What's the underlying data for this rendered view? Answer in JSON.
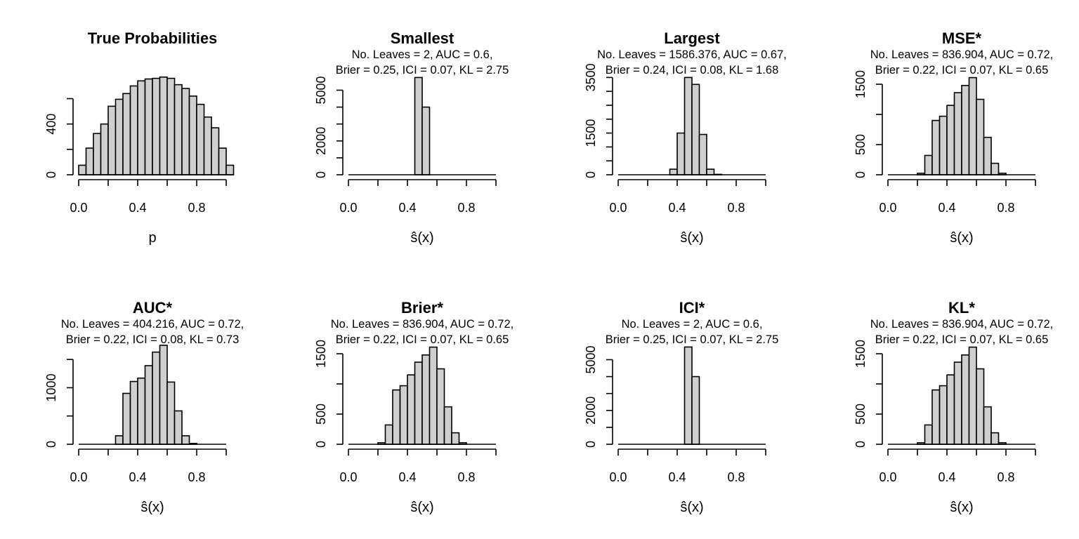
{
  "chart_data": [
    {
      "type": "bar",
      "title": "True Probabilities",
      "subtitle_1": "",
      "subtitle_2": "",
      "xlabel": "p",
      "xlim": [
        0,
        1
      ],
      "bin_width": 0.05,
      "x_ticks": [
        "0.0",
        "0.4",
        "0.8"
      ],
      "y_ticks": [
        "0",
        "400"
      ],
      "y_tick_values": [
        0,
        400
      ],
      "y_tick_positions": [
        0,
        200,
        400,
        600
      ],
      "ylim": [
        0,
        780
      ],
      "values": [
        75,
        210,
        325,
        400,
        540,
        595,
        640,
        700,
        740,
        755,
        760,
        770,
        760,
        710,
        680,
        620,
        555,
        455,
        370,
        210,
        75
      ]
    },
    {
      "type": "bar",
      "title": "Smallest",
      "subtitle_1": "No. Leaves = 2, AUC = 0.6,",
      "subtitle_2": "Brier = 0.25, ICI = 0.07, KL = 2.75",
      "xlabel": "ŝ(x)",
      "xlim": [
        0,
        1
      ],
      "bin_width": 0.05,
      "x_ticks": [
        "0.0",
        "0.4",
        "0.8"
      ],
      "y_ticks": [
        "0",
        "2000",
        "5000"
      ],
      "y_tick_values": [
        0,
        2000,
        5000
      ],
      "y_tick_positions": [
        0,
        1000,
        2000,
        3000,
        4000,
        5000,
        6000
      ],
      "ylim": [
        0,
        5850
      ],
      "values": [
        0,
        0,
        0,
        0,
        0,
        0,
        0,
        0,
        0,
        5750,
        4000,
        0,
        0,
        0,
        0,
        0,
        0,
        0,
        0,
        0
      ]
    },
    {
      "type": "bar",
      "title": "Largest",
      "subtitle_1": "No. Leaves = 1586.376, AUC = 0.67,",
      "subtitle_2": "Brier = 0.24, ICI = 0.08, KL = 1.68",
      "xlabel": "ŝ(x)",
      "xlim": [
        0,
        1
      ],
      "bin_width": 0.05,
      "x_ticks": [
        "0.0",
        "0.4",
        "0.8"
      ],
      "y_ticks": [
        "0",
        "1500",
        "3500"
      ],
      "y_tick_values": [
        0,
        1500,
        3500
      ],
      "y_tick_positions": [
        0,
        500,
        1000,
        1500,
        2000,
        2500,
        3000,
        3500
      ],
      "ylim": [
        0,
        3560
      ],
      "values": [
        0,
        0,
        0,
        0,
        0,
        0,
        0,
        200,
        1500,
        3500,
        3250,
        1450,
        200,
        15,
        0,
        0,
        0,
        0,
        0,
        0
      ]
    },
    {
      "type": "bar",
      "title": "MSE*",
      "subtitle_1": "No. Leaves = 836.904, AUC = 0.72,",
      "subtitle_2": "Brier = 0.22, ICI = 0.07, KL = 0.65",
      "xlabel": "ŝ(x)",
      "xlim": [
        0,
        1
      ],
      "bin_width": 0.05,
      "x_ticks": [
        "0.0",
        "0.4",
        "0.8"
      ],
      "y_ticks": [
        "0",
        "500",
        "1500"
      ],
      "y_tick_values": [
        0,
        500,
        1500
      ],
      "y_tick_positions": [
        0,
        500,
        1000,
        1500
      ],
      "ylim": [
        0,
        1640
      ],
      "values": [
        0,
        0,
        0,
        0,
        25,
        320,
        900,
        970,
        1150,
        1360,
        1480,
        1610,
        1250,
        620,
        190,
        25,
        0,
        0,
        0,
        0
      ]
    },
    {
      "type": "bar",
      "title": "AUC*",
      "subtitle_1": "No. Leaves = 404.216, AUC = 0.72,",
      "subtitle_2": "Brier = 0.22, ICI = 0.08, KL = 0.73",
      "xlabel": "ŝ(x)",
      "xlim": [
        0,
        1
      ],
      "bin_width": 0.05,
      "x_ticks": [
        "0.0",
        "0.4",
        "0.8"
      ],
      "y_ticks": [
        "0",
        "1000"
      ],
      "y_tick_values": [
        0,
        1000
      ],
      "y_tick_positions": [
        0,
        500,
        1000,
        1500
      ],
      "ylim": [
        0,
        1750
      ],
      "values": [
        0,
        0,
        0,
        0,
        0,
        150,
        900,
        1110,
        1170,
        1390,
        1630,
        1750,
        1100,
        590,
        150,
        15,
        0,
        0,
        0,
        0
      ]
    },
    {
      "type": "bar",
      "title": "Brier*",
      "subtitle_1": "No. Leaves = 836.904, AUC = 0.72,",
      "subtitle_2": "Brier = 0.22, ICI = 0.07, KL = 0.65",
      "xlabel": "ŝ(x)",
      "xlim": [
        0,
        1
      ],
      "bin_width": 0.05,
      "x_ticks": [
        "0.0",
        "0.4",
        "0.8"
      ],
      "y_ticks": [
        "0",
        "500",
        "1500"
      ],
      "y_tick_values": [
        0,
        500,
        1500
      ],
      "y_tick_positions": [
        0,
        500,
        1000,
        1500
      ],
      "ylim": [
        0,
        1640
      ],
      "values": [
        0,
        0,
        0,
        0,
        25,
        320,
        900,
        970,
        1150,
        1360,
        1480,
        1610,
        1250,
        620,
        190,
        25,
        0,
        0,
        0,
        0
      ]
    },
    {
      "type": "bar",
      "title": "ICI*",
      "subtitle_1": "No. Leaves = 2, AUC = 0.6,",
      "subtitle_2": "Brier = 0.25, ICI = 0.07, KL = 2.75",
      "xlabel": "ŝ(x)",
      "xlim": [
        0,
        1
      ],
      "bin_width": 0.05,
      "x_ticks": [
        "0.0",
        "0.4",
        "0.8"
      ],
      "y_ticks": [
        "0",
        "2000",
        "5000"
      ],
      "y_tick_values": [
        0,
        2000,
        5000
      ],
      "y_tick_positions": [
        0,
        1000,
        2000,
        3000,
        4000,
        5000,
        6000
      ],
      "ylim": [
        0,
        5850
      ],
      "values": [
        0,
        0,
        0,
        0,
        0,
        0,
        0,
        0,
        0,
        5750,
        4000,
        0,
        0,
        0,
        0,
        0,
        0,
        0,
        0,
        0
      ]
    },
    {
      "type": "bar",
      "title": "KL*",
      "subtitle_1": "No. Leaves = 836.904, AUC = 0.72,",
      "subtitle_2": "Brier = 0.22, ICI = 0.07, KL = 0.65",
      "xlabel": "ŝ(x)",
      "xlim": [
        0,
        1
      ],
      "bin_width": 0.05,
      "x_ticks": [
        "0.0",
        "0.4",
        "0.8"
      ],
      "y_ticks": [
        "0",
        "500",
        "1500"
      ],
      "y_tick_values": [
        0,
        500,
        1500
      ],
      "y_tick_positions": [
        0,
        500,
        1000,
        1500
      ],
      "ylim": [
        0,
        1640
      ],
      "values": [
        0,
        0,
        0,
        0,
        25,
        320,
        900,
        970,
        1150,
        1360,
        1480,
        1610,
        1250,
        620,
        190,
        25,
        0,
        0,
        0,
        0
      ]
    }
  ]
}
